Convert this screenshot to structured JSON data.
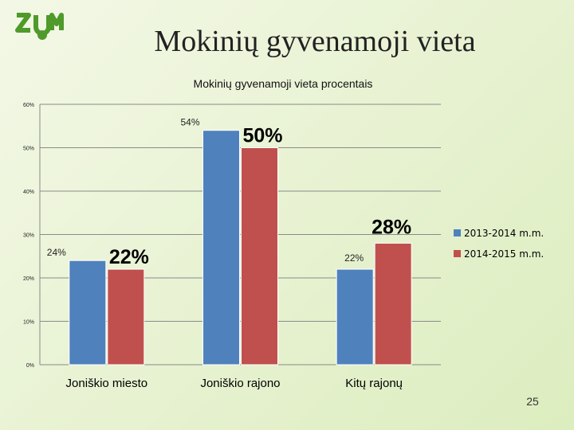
{
  "slide": {
    "title": "Mokinių gyvenamoji vieta",
    "page_number": "25"
  },
  "logo": {
    "icon": "zum-logo-icon",
    "color": "#4f9a2a"
  },
  "chart_data": {
    "type": "bar",
    "title": "Mokinių gyvenamoji vieta procentais",
    "categories": [
      "Joniškio miesto",
      "Joniškio rajono",
      "Kitų rajonų"
    ],
    "series": [
      {
        "name": "2013-2014 m.m.",
        "color": "#4f81bd",
        "values": [
          24,
          54,
          22
        ],
        "labels": [
          "24%",
          "54%",
          "22%"
        ]
      },
      {
        "name": "2014-2015 m.m.",
        "color": "#c0504d",
        "values": [
          22,
          50,
          28
        ],
        "labels": [
          "22%",
          "50%",
          "28%"
        ]
      }
    ],
    "ylim": [
      0,
      60
    ],
    "yticks": [
      0,
      10,
      20,
      30,
      40,
      50,
      60
    ],
    "ytick_labels": [
      "0%",
      "10%",
      "20%",
      "30%",
      "40%",
      "50%",
      "60%"
    ],
    "grid": true,
    "legend": "right"
  }
}
